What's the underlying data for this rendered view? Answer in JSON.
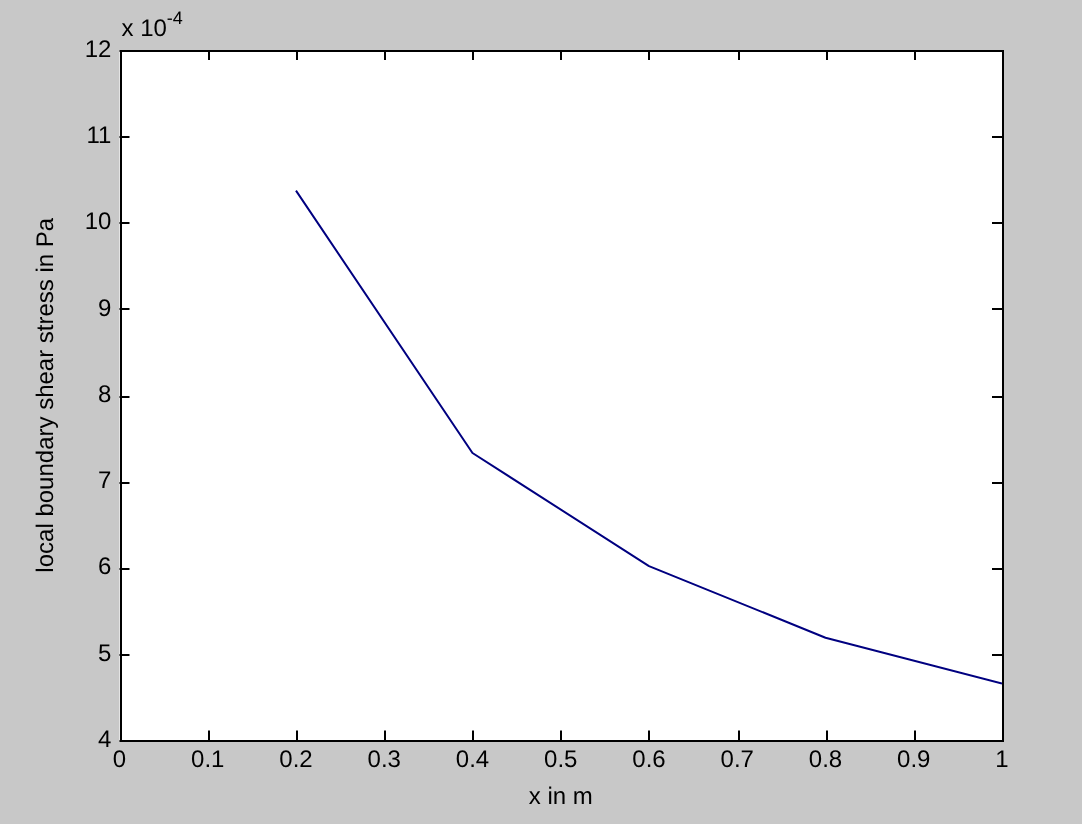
{
  "chart_data": {
    "type": "line",
    "xlabel": "x in m",
    "ylabel": "local boundary shear stress in Pa",
    "annotations": [
      "x 10$^{-4}$"
    ],
    "x": [
      0.2,
      0.4,
      0.6,
      0.8,
      1
    ],
    "series": [
      {
        "color": "#000080",
        "values": [
          10.37,
          7.33,
          6.02,
          5.19,
          4.66
        ]
      }
    ],
    "xlim": [
      0,
      1
    ],
    "xticks": [
      0,
      0.1,
      0.2,
      0.3,
      0.4,
      0.5,
      0.6,
      0.7,
      0.8,
      0.9,
      1
    ],
    "ylim": [
      4,
      12
    ],
    "yticks": [
      4,
      5,
      6,
      7,
      8,
      9,
      10,
      11,
      12
    ]
  }
}
